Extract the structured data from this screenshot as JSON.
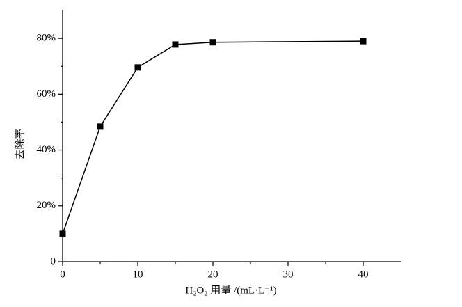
{
  "chart_data": {
    "type": "line",
    "x_label": "H₂O₂ 用量 /(mL·L⁻¹)",
    "y_label": "去除率",
    "x": [
      0,
      5,
      10,
      15,
      20,
      40
    ],
    "series": [
      {
        "name": "去除率",
        "color": "#000000",
        "values": [
          10,
          48.4,
          69.6,
          77.8,
          78.6,
          79
        ]
      }
    ],
    "xlim": [
      0,
      45
    ],
    "xticks": [
      0,
      10,
      20,
      30,
      40
    ],
    "xminorticks": [
      5,
      15,
      25,
      35
    ],
    "ylim": [
      0,
      90
    ],
    "yticks": [
      0,
      {
        "value": 20,
        "label": "20%"
      },
      {
        "value": 40,
        "label": "40%"
      },
      {
        "value": 60,
        "label": "60%"
      },
      {
        "value": 80,
        "label": "80%"
      }
    ],
    "yminorticks": [
      10,
      30,
      50,
      70
    ],
    "grid": false
  }
}
